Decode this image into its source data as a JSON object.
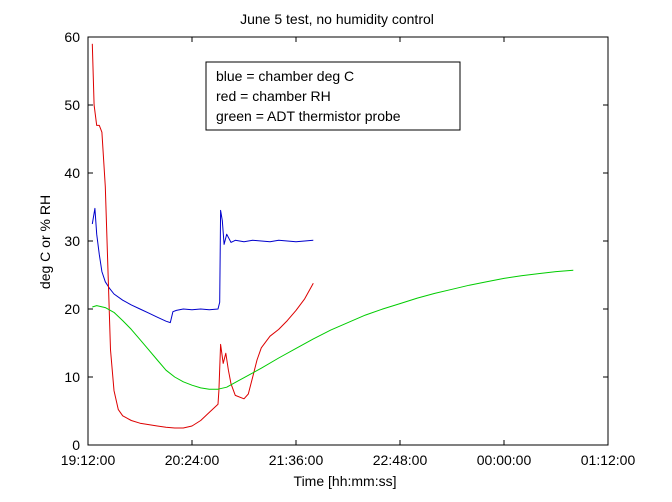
{
  "chart_data": {
    "type": "line",
    "title": "June 5 test, no humidity control",
    "xlabel": "Time [hh:mm:ss]",
    "ylabel": "deg C or % RH",
    "xlim_hours": [
      19.2,
      25.2
    ],
    "ylim": [
      0,
      60
    ],
    "x_tick_labels": [
      "19:12:00",
      "20:24:00",
      "21:36:00",
      "22:48:00",
      "00:00:00",
      "01:12:00"
    ],
    "x_tick_hours": [
      19.2,
      20.4,
      21.6,
      22.8,
      24.0,
      25.2
    ],
    "y_ticks": [
      0,
      10,
      20,
      30,
      40,
      50,
      60
    ],
    "grid": false,
    "legend_placement": "top-center",
    "legend": [
      "blue = chamber deg C",
      "red = chamber RH",
      "green = ADT thermistor probe"
    ],
    "series": [
      {
        "color": "#0000cc",
        "x_hours": [
          19.25,
          19.28,
          19.3,
          19.33,
          19.36,
          19.4,
          19.45,
          19.5,
          19.6,
          19.7,
          19.8,
          19.9,
          20.0,
          20.1,
          20.15,
          20.18,
          20.22,
          20.3,
          20.4,
          20.5,
          20.6,
          20.7,
          20.72,
          20.73,
          20.75,
          20.77,
          20.8,
          20.85,
          20.9,
          21.0,
          21.1,
          21.2,
          21.3,
          21.4,
          21.5,
          21.6,
          21.7,
          21.8
        ],
        "y": [
          32.5,
          34.8,
          31.0,
          28.0,
          25.5,
          24.0,
          23.0,
          22.2,
          21.3,
          20.6,
          20.0,
          19.4,
          18.8,
          18.2,
          18.0,
          19.6,
          19.8,
          20.0,
          19.9,
          20.0,
          19.9,
          20.0,
          21.0,
          34.5,
          33.0,
          29.5,
          31.0,
          29.8,
          30.1,
          29.9,
          30.1,
          30.0,
          29.9,
          30.1,
          30.0,
          29.9,
          30.0,
          30.1
        ]
      },
      {
        "color": "#dd0000",
        "x_hours": [
          19.25,
          19.27,
          19.3,
          19.33,
          19.36,
          19.4,
          19.43,
          19.46,
          19.5,
          19.55,
          19.6,
          19.7,
          19.8,
          19.9,
          20.0,
          20.1,
          20.2,
          20.3,
          20.4,
          20.5,
          20.6,
          20.7,
          20.71,
          20.73,
          20.76,
          20.79,
          20.82,
          20.85,
          20.9,
          21.0,
          21.05,
          21.1,
          21.15,
          21.2,
          21.3,
          21.4,
          21.5,
          21.6,
          21.7,
          21.8
        ],
        "y": [
          59.0,
          50.0,
          47.0,
          47.0,
          46.0,
          38.0,
          26.0,
          14.0,
          8.0,
          5.2,
          4.3,
          3.6,
          3.2,
          3.0,
          2.8,
          2.6,
          2.5,
          2.5,
          2.8,
          3.6,
          4.8,
          6.0,
          8.0,
          14.8,
          12.0,
          13.5,
          11.0,
          9.0,
          7.3,
          6.8,
          7.5,
          10.0,
          12.5,
          14.3,
          16.0,
          17.0,
          18.3,
          19.8,
          21.5,
          23.8
        ]
      },
      {
        "color": "#00cc00",
        "x_hours": [
          19.25,
          19.3,
          19.4,
          19.5,
          19.6,
          19.7,
          19.8,
          19.9,
          20.0,
          20.1,
          20.2,
          20.3,
          20.4,
          20.5,
          20.6,
          20.7,
          20.8,
          20.9,
          21.0,
          21.2,
          21.4,
          21.6,
          21.8,
          22.0,
          22.2,
          22.4,
          22.6,
          22.8,
          23.0,
          23.2,
          23.4,
          23.6,
          23.8,
          24.0,
          24.2,
          24.4,
          24.6,
          24.8
        ],
        "y": [
          20.3,
          20.5,
          20.2,
          19.5,
          18.3,
          17.0,
          15.5,
          14.0,
          12.5,
          11.0,
          10.0,
          9.3,
          8.8,
          8.4,
          8.2,
          8.2,
          8.5,
          9.2,
          9.9,
          11.3,
          12.8,
          14.2,
          15.6,
          16.9,
          18.0,
          19.1,
          20.0,
          20.8,
          21.6,
          22.3,
          22.9,
          23.5,
          24.0,
          24.5,
          24.9,
          25.2,
          25.5,
          25.7
        ]
      }
    ]
  }
}
